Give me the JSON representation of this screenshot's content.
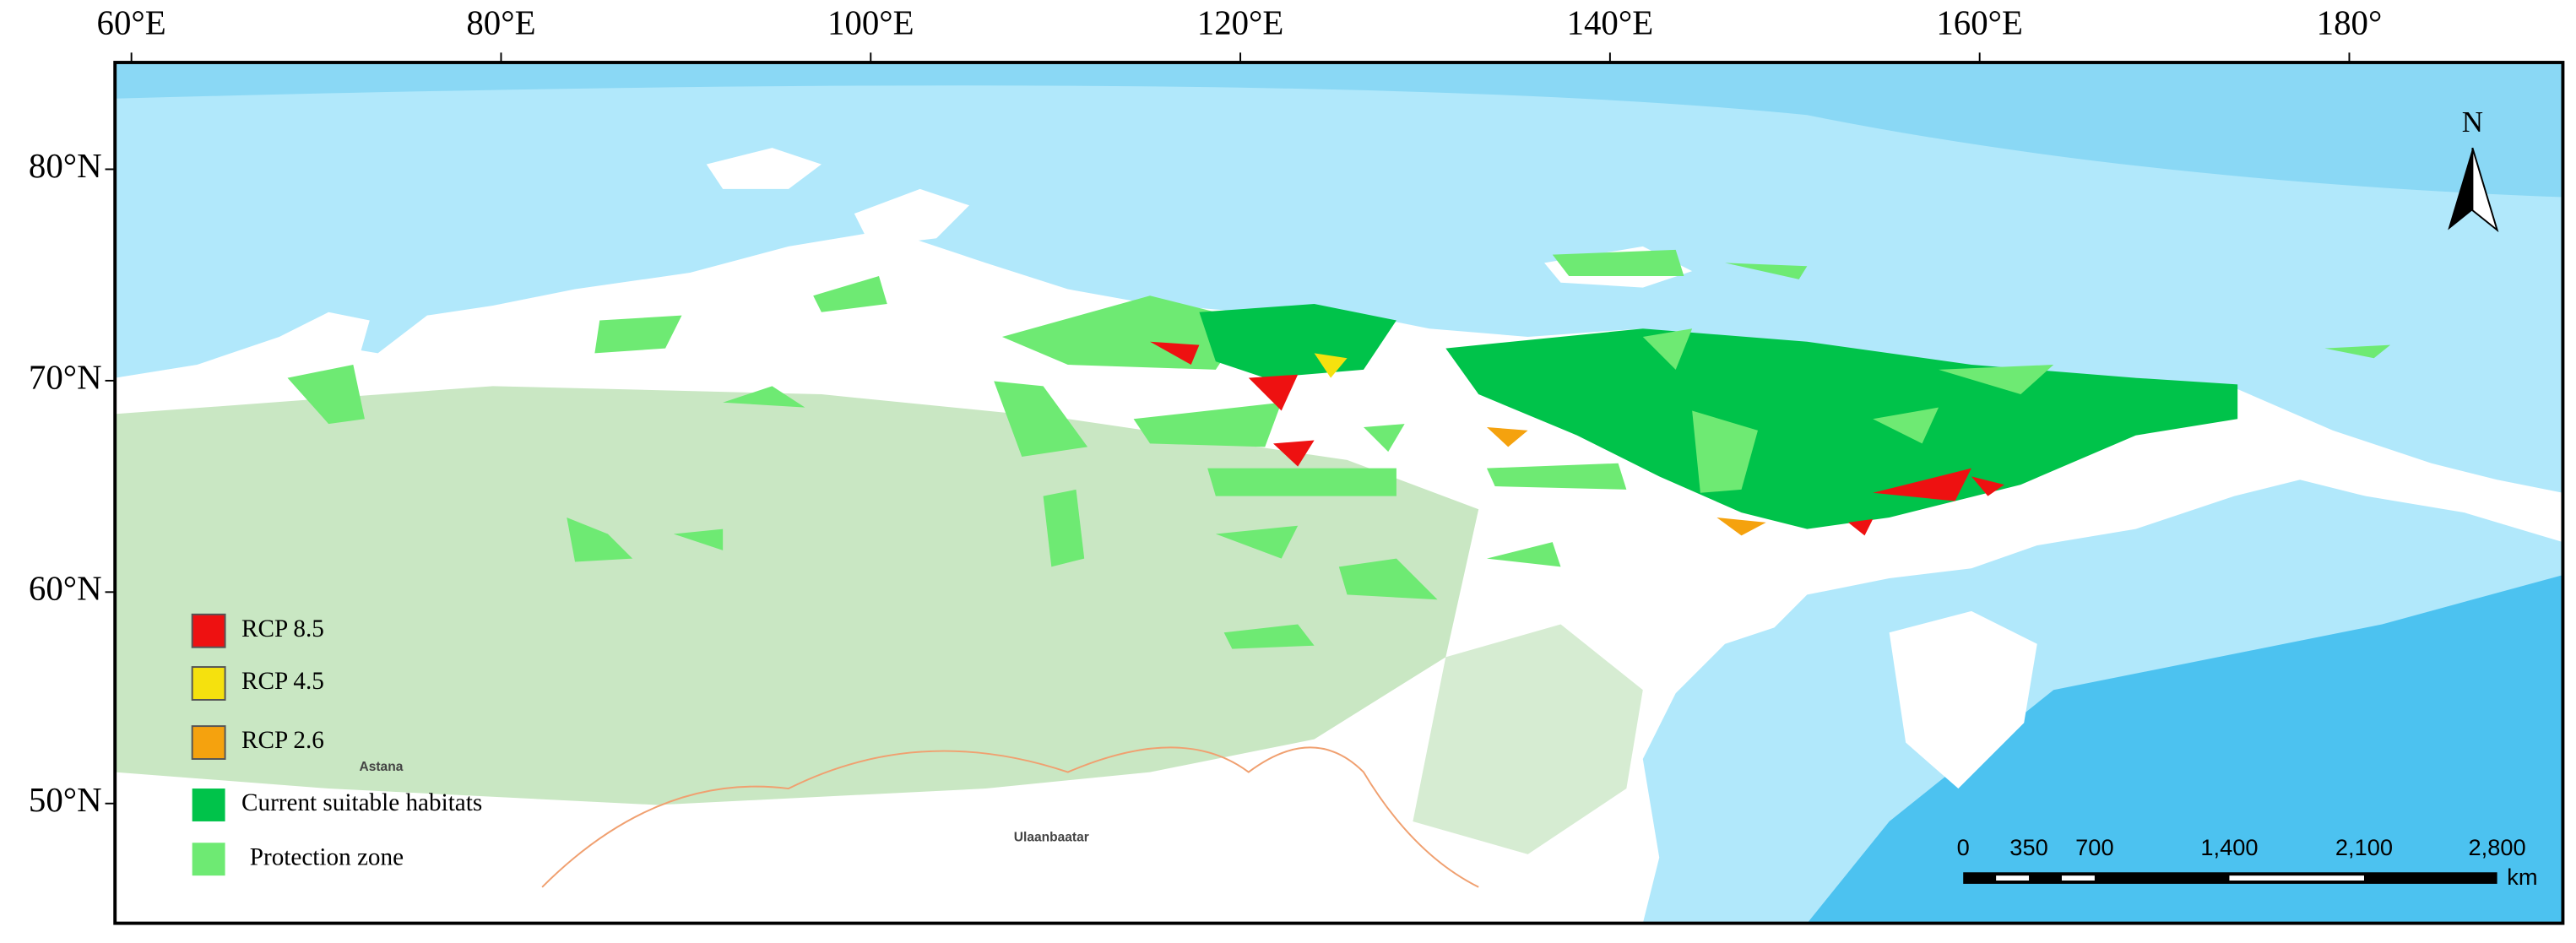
{
  "graticule": {
    "longitudes": [
      "60°E",
      "80°E",
      "100°E",
      "120°E",
      "140°E",
      "160°E",
      "180°"
    ],
    "latitudes": [
      "80°N",
      "70°N",
      "60°N",
      "50°N"
    ]
  },
  "legend": {
    "items": [
      "RCP 8.5",
      "RCP 4.5",
      "RCP 2.6",
      "Current suitable habitats",
      "Protection zone"
    ]
  },
  "scale_bar": {
    "labels": [
      "0",
      "350",
      "700",
      "1,400",
      "2,100",
      "2,800"
    ],
    "unit": "km"
  },
  "north_arrow": "N",
  "places": [
    "Astana",
    "Ulaanbaatar"
  ]
}
